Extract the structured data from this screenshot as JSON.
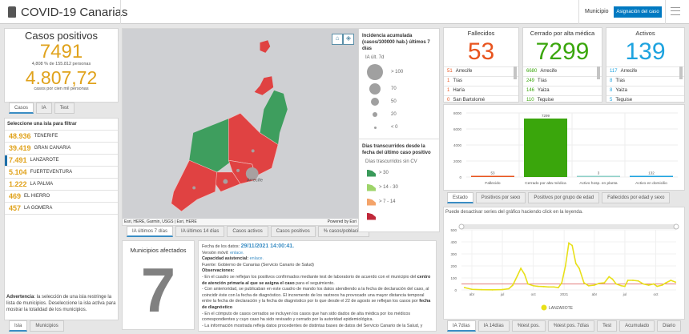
{
  "header": {
    "title": "COVID-19 Canarias",
    "municipio_label": "Municipio",
    "asignacion_button": "Asignación del caso"
  },
  "colors": {
    "accent": "#0079c1",
    "positivos": "#e0a21b",
    "fallecidos": "#e8541e",
    "cerrados": "#3aa60c",
    "activos": "#1ea3df",
    "threshold": "#d9534f",
    "series": "#e8e01a"
  },
  "positivos": {
    "title": "Casos positivos",
    "count": "7491",
    "pct": "4,808 % de 155.812 personas",
    "rate": "4.807,72",
    "rate_label": "casos por cien mil personas",
    "tabs": [
      "Casos",
      "IA",
      "Test"
    ]
  },
  "islands": {
    "header": "Seleccione una isla para filtrar",
    "items": [
      {
        "value": "48.936",
        "name": "TENERIFE"
      },
      {
        "value": "39.419",
        "name": "GRAN CANARIA"
      },
      {
        "value": "7.491",
        "name": "LANZAROTE",
        "selected": true
      },
      {
        "value": "5.104",
        "name": "FUERTEVENTURA"
      },
      {
        "value": "1.222",
        "name": "LA PALMA"
      },
      {
        "value": "469",
        "name": "EL HIERRO"
      },
      {
        "value": "457",
        "name": "LA GOMERA"
      }
    ],
    "warning_bold": "Advertencia",
    "warning": ": la selección de una isla restringe la lista de municipios. Deseleccione la isla activa para mostrar la totalidad de los municipios.",
    "tabs": [
      "Isla",
      "Municipios"
    ]
  },
  "map": {
    "attribution": "Esri, HERE, Garmin, USGS | Esri, HERE",
    "powered": "Powered by Esri",
    "label": "Arrecife",
    "tabs": [
      "IA últimos 7 días",
      "IA últimos 14 días",
      "Casos activos",
      "Casos positivos",
      "% casos/población"
    ],
    "home_icon": "home-icon",
    "layers_icon": "layers-icon"
  },
  "legend": {
    "title1": "Incidencia acumulada (casos/100000 hab.) últimos 7 días",
    "sub1": "IA últ. 7d",
    "sizes": [
      "> 100",
      "70",
      "50",
      "20",
      "< 0"
    ],
    "title2": "Días transcurridos desde la fecha del último caso positivo",
    "sub2": "Días trascurridos sin CV",
    "classes": [
      {
        "label": "> 30",
        "color": "#3a9a5a"
      },
      {
        "label": "> 14 - 30",
        "color": "#9ed46a"
      },
      {
        "label": "> 7 - 14",
        "color": "#f4a46a"
      },
      {
        "label": "",
        "color": "#c0283a"
      }
    ]
  },
  "municipios": {
    "title": "Municipios afectados",
    "count": "7"
  },
  "info": {
    "fecha_label": "Fecha de los datos:",
    "fecha": "29/11/2021 14:00:41.",
    "movil_label": "Versión móvil:",
    "link": "enlace.",
    "capacidad_label": "Capacidad asistencial:",
    "fuente": "Fuente: Gobierno de Canarias (Servicio Canario de Salud)",
    "obs": "Observaciones:",
    "p1a": "- En el cuadro se reflejan los positivos confirmados mediante test de laboratorio de acuerdo con el municipio del",
    "p1b": "centro de atención primaria al que se asigna el caso",
    "p1c": " para el seguimiento.",
    "p2": "- Con anterioridad, se publicaban en este cuadro de mando los datos atendiendo a la fecha de declaración del caso, al coincidir éste con la fecha de diagnóstico. El incremento de los rastreos ha provocado una mayor distancia temporal entre la fecha de declaración y la fecha de diagnóstico por lo que desde el 22 de agosto se reflejan los casos por ",
    "p2b": "fecha de diagnóstico",
    "p3": "- En el cómputo de casos cerrados se incluyen los casos que han sido dados de alta médica por los médicos correspondientes y cuyo caso ha sido revisado y cerrado por la autoridad epidemiológica.",
    "p4": "- La información mostrada refleja datos procedentes de distintas bases de datos del Servicio Canario de la Salud, y"
  },
  "fallecidos": {
    "title": "Fallecidos",
    "count": "53",
    "rows": [
      {
        "v": "51",
        "m": "Arrecife"
      },
      {
        "v": "1",
        "m": "Tías"
      },
      {
        "v": "1",
        "m": "Haría"
      },
      {
        "v": "0",
        "m": "San Bartolomé"
      }
    ]
  },
  "cerrados": {
    "title": "Cerrado por alta médica",
    "count": "7299",
    "rows": [
      {
        "v": "6680",
        "m": "Arrecife"
      },
      {
        "v": "249",
        "m": "Tías"
      },
      {
        "v": "146",
        "m": "Yaiza"
      },
      {
        "v": "110",
        "m": "Teguise"
      }
    ]
  },
  "activos": {
    "title": "Activos",
    "count": "139",
    "rows": [
      {
        "v": "117",
        "m": "Arrecife"
      },
      {
        "v": "8",
        "m": "Tías"
      },
      {
        "v": "8",
        "m": "Yaiza"
      },
      {
        "v": "5",
        "m": "Teguise"
      }
    ]
  },
  "bar_tabs": [
    "Estado",
    "Positivos por sexo",
    "Positivos por grupo de edad",
    "Fallecidos por edad y sexo"
  ],
  "line_note": "Puede desactivar series del gráfico haciendo click en la leyenda.",
  "line_tabs": [
    "IA 7días",
    "IA 14días",
    "%test pos.",
    "%test pos. 7días",
    "Test",
    "Acumulado",
    "Diario"
  ],
  "chart_data": [
    {
      "type": "bar",
      "categories": [
        "Fallecido",
        "Cerrado por alta médica",
        "Activo hosp. en planta",
        "Activo en domicilio"
      ],
      "values": [
        53,
        7299,
        3,
        132
      ],
      "colors": [
        "#e8541e",
        "#3aa60c",
        "#8fd0c8",
        "#1ea3df"
      ],
      "ylim": [
        0,
        8000
      ],
      "yticks": [
        0,
        2000,
        4000,
        6000,
        8000
      ],
      "grid": true
    },
    {
      "type": "line",
      "series": [
        {
          "name": "LANZAROTE",
          "color": "#e8e01a",
          "points": [
            [
              "2020-03-10",
              20
            ],
            [
              "2020-04-01",
              5
            ],
            [
              "2020-05-01",
              2
            ],
            [
              "2020-06-01",
              1
            ],
            [
              "2020-07-01",
              3
            ],
            [
              "2020-07-20",
              10
            ],
            [
              "2020-08-01",
              40
            ],
            [
              "2020-08-15",
              120
            ],
            [
              "2020-08-25",
              180
            ],
            [
              "2020-09-05",
              130
            ],
            [
              "2020-09-15",
              50
            ],
            [
              "2020-10-01",
              35
            ],
            [
              "2020-10-15",
              30
            ],
            [
              "2020-11-01",
              28
            ],
            [
              "2020-11-15",
              25
            ],
            [
              "2020-12-01",
              25
            ],
            [
              "2020-12-15",
              20
            ],
            [
              "2020-12-25",
              60
            ],
            [
              "2021-01-05",
              200
            ],
            [
              "2021-01-15",
              390
            ],
            [
              "2021-01-25",
              370
            ],
            [
              "2021-02-05",
              220
            ],
            [
              "2021-02-15",
              180
            ],
            [
              "2021-03-01",
              60
            ],
            [
              "2021-03-15",
              35
            ],
            [
              "2021-04-01",
              40
            ],
            [
              "2021-04-15",
              55
            ],
            [
              "2021-05-01",
              60
            ],
            [
              "2021-05-15",
              110
            ],
            [
              "2021-05-25",
              90
            ],
            [
              "2021-06-05",
              50
            ],
            [
              "2021-06-20",
              35
            ],
            [
              "2021-07-01",
              30
            ],
            [
              "2021-07-10",
              80
            ],
            [
              "2021-07-25",
              80
            ],
            [
              "2021-08-10",
              75
            ],
            [
              "2021-08-25",
              50
            ],
            [
              "2021-09-10",
              40
            ],
            [
              "2021-09-25",
              50
            ],
            [
              "2021-10-05",
              30
            ],
            [
              "2021-10-20",
              40
            ],
            [
              "2021-11-01",
              60
            ],
            [
              "2021-11-15",
              80
            ],
            [
              "2021-11-29",
              65
            ]
          ]
        }
      ],
      "threshold": 50,
      "xlim": [
        "2020-03-01",
        "2021-12-01"
      ],
      "xticks": [
        [
          "2020-04-01",
          "abr"
        ],
        [
          "2020-07-01",
          "jul"
        ],
        [
          "2020-10-01",
          "oct"
        ],
        [
          "2021-01-01",
          "2021"
        ],
        [
          "2021-04-01",
          "abr"
        ],
        [
          "2021-07-01",
          "jul"
        ],
        [
          "2021-10-01",
          "oct"
        ]
      ],
      "ylim": [
        0,
        500
      ],
      "yticks": [
        0,
        100,
        200,
        300,
        400,
        500
      ],
      "legend": "bottom",
      "grid": true
    }
  ]
}
